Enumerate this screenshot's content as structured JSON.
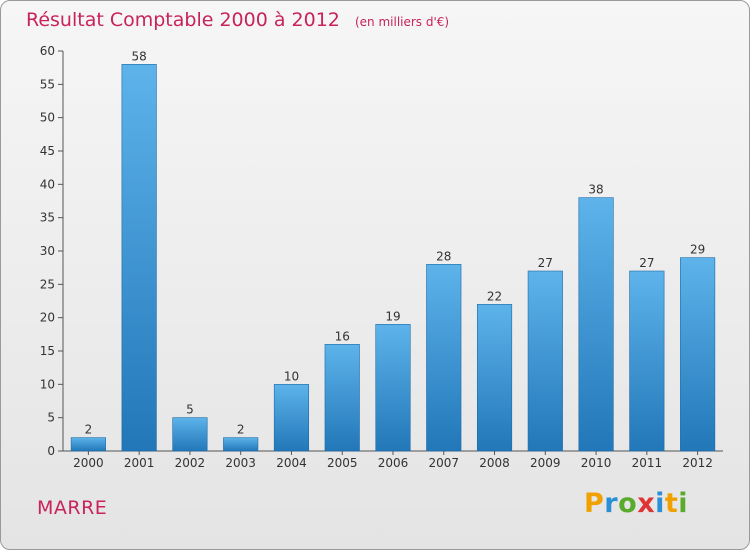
{
  "title": "Résultat Comptable 2000 à 2012",
  "subtitle": "(en milliers d'€)",
  "place_name": "MARRE",
  "logo": {
    "letters": [
      "P",
      "r",
      "o",
      "x",
      "i",
      "t",
      "i"
    ],
    "colors": [
      "#f0a100",
      "#2a8fd6",
      "#5aab2b",
      "#e03434",
      "#2a8fd6",
      "#f0a100",
      "#5aab2b"
    ]
  },
  "colors": {
    "bar_light": "#5db3ea",
    "bar_dark": "#2277b8",
    "title": "#c8235a"
  },
  "chart_data": {
    "type": "bar",
    "title": "Résultat Comptable 2000 à 2012",
    "subtitle": "(en milliers d'€)",
    "xlabel": "",
    "ylabel": "",
    "categories": [
      "2000",
      "2001",
      "2002",
      "2003",
      "2004",
      "2005",
      "2006",
      "2007",
      "2008",
      "2009",
      "2010",
      "2011",
      "2012"
    ],
    "values": [
      2,
      58,
      5,
      2,
      10,
      16,
      19,
      28,
      22,
      27,
      38,
      27,
      29
    ],
    "ylim": [
      0,
      60
    ],
    "yticks": [
      0,
      5,
      10,
      15,
      20,
      25,
      30,
      35,
      40,
      45,
      50,
      55,
      60
    ],
    "grid": false,
    "legend": "none"
  }
}
